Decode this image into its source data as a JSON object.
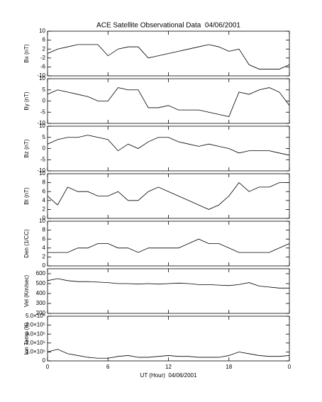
{
  "chart_data": [
    {
      "type": "line",
      "title": "ACE Satellite Observational Data  04/06/2001",
      "ylabel": "Bx (nT)",
      "color": "#000000",
      "x": [
        0,
        1,
        2,
        3,
        4,
        5,
        6,
        7,
        8,
        9,
        10,
        11,
        12,
        13,
        14,
        15,
        16,
        17,
        18,
        19,
        20,
        21,
        22,
        23,
        24
      ],
      "values": [
        0,
        2,
        3,
        4,
        4,
        4,
        -1,
        2,
        3,
        3,
        -2,
        -1,
        0,
        1,
        2,
        3,
        4,
        3,
        1,
        2,
        -5,
        -7,
        -7,
        -7,
        -5
      ],
      "xlim": [
        0,
        24
      ],
      "xticks": [
        0,
        6,
        12,
        18,
        24
      ],
      "ylim": [
        -10,
        10
      ],
      "yticks": [
        -10,
        -6,
        -2,
        2,
        6,
        10
      ]
    },
    {
      "type": "line",
      "ylabel": "By (nT)",
      "color": "#000000",
      "x": [
        0,
        1,
        2,
        3,
        4,
        5,
        6,
        7,
        8,
        9,
        10,
        11,
        12,
        13,
        14,
        15,
        16,
        17,
        18,
        19,
        20,
        21,
        22,
        23,
        24
      ],
      "values": [
        3,
        5,
        4,
        3,
        2,
        0,
        0,
        6,
        5,
        5,
        -3,
        -3,
        -2,
        -4,
        -4,
        -4,
        -5,
        -6,
        -7,
        4,
        3,
        5,
        6,
        4,
        -2
      ],
      "xlim": [
        0,
        24
      ],
      "xticks": [
        0,
        6,
        12,
        18,
        24
      ],
      "ylim": [
        -10,
        10
      ],
      "yticks": [
        -10,
        -5,
        0,
        5,
        10
      ]
    },
    {
      "type": "line",
      "ylabel": "Bz (nT)",
      "color": "#000000",
      "x": [
        0,
        1,
        2,
        3,
        4,
        5,
        6,
        7,
        8,
        9,
        10,
        11,
        12,
        13,
        14,
        15,
        16,
        17,
        18,
        19,
        20,
        21,
        22,
        23,
        24
      ],
      "values": [
        2,
        4,
        5,
        5,
        6,
        5,
        4,
        -1,
        2,
        0,
        3,
        5,
        5,
        3,
        2,
        1,
        2,
        1,
        0,
        -2,
        -1,
        -1,
        -1,
        -2,
        -3
      ],
      "xlim": [
        0,
        24
      ],
      "xticks": [
        0,
        6,
        12,
        18,
        24
      ],
      "ylim": [
        -10,
        10
      ],
      "yticks": [
        -10,
        -5,
        0,
        5,
        10
      ]
    },
    {
      "type": "line",
      "ylabel": "Bt (nT)",
      "color": "#000000",
      "x": [
        0,
        1,
        2,
        3,
        4,
        5,
        6,
        7,
        8,
        9,
        10,
        11,
        12,
        13,
        14,
        15,
        16,
        17,
        18,
        19,
        20,
        21,
        22,
        23,
        24
      ],
      "values": [
        5,
        3,
        7,
        6,
        6,
        5,
        5,
        6,
        4,
        4,
        6,
        7,
        6,
        5,
        4,
        3,
        2,
        3,
        5,
        8,
        6,
        7,
        7,
        8,
        8
      ],
      "xlim": [
        0,
        24
      ],
      "xticks": [
        0,
        6,
        12,
        18,
        24
      ],
      "ylim": [
        0,
        10
      ],
      "yticks": [
        0,
        2,
        4,
        6,
        8,
        10
      ]
    },
    {
      "type": "line",
      "ylabel": "Den (1/CC)",
      "color": "#000000",
      "x": [
        0,
        1,
        2,
        3,
        4,
        5,
        6,
        7,
        8,
        9,
        10,
        11,
        12,
        13,
        14,
        15,
        16,
        17,
        18,
        19,
        20,
        21,
        22,
        23,
        24
      ],
      "values": [
        3,
        3,
        3,
        4,
        4,
        5,
        5,
        4,
        4,
        3,
        4,
        4,
        4,
        4,
        5,
        6,
        5,
        5,
        4,
        3,
        3,
        3,
        3,
        4,
        5
      ],
      "xlim": [
        0,
        24
      ],
      "xticks": [
        0,
        6,
        12,
        18,
        24
      ],
      "ylim": [
        0,
        10
      ],
      "yticks": [
        0,
        2,
        4,
        6,
        8,
        10
      ]
    },
    {
      "type": "line",
      "ylabel": "Vel (Km/sec)",
      "color": "#000000",
      "x": [
        0,
        1,
        2,
        3,
        4,
        5,
        6,
        7,
        8,
        9,
        10,
        11,
        12,
        13,
        14,
        15,
        16,
        17,
        18,
        19,
        20,
        21,
        22,
        23,
        24
      ],
      "values": [
        530,
        550,
        530,
        520,
        520,
        515,
        510,
        500,
        500,
        495,
        500,
        495,
        500,
        505,
        500,
        490,
        490,
        485,
        480,
        490,
        510,
        475,
        465,
        455,
        455
      ],
      "xlim": [
        0,
        24
      ],
      "xticks": [
        0,
        6,
        12,
        18,
        24
      ],
      "ylim": [
        200,
        650
      ],
      "yticks": [
        200,
        300,
        400,
        500,
        600
      ]
    },
    {
      "type": "line",
      "ylabel": "Ion Temp (K)",
      "xlabel": "UT (Hour)  04/06/2001",
      "color": "#000000",
      "x": [
        0,
        1,
        2,
        3,
        4,
        5,
        6,
        7,
        8,
        9,
        10,
        11,
        12,
        13,
        14,
        15,
        16,
        17,
        18,
        19,
        20,
        21,
        22,
        23,
        24
      ],
      "values": [
        100000,
        130000,
        80000,
        60000,
        40000,
        30000,
        30000,
        50000,
        60000,
        40000,
        40000,
        50000,
        60000,
        50000,
        50000,
        40000,
        40000,
        40000,
        60000,
        100000,
        80000,
        60000,
        50000,
        50000,
        60000
      ],
      "xlim": [
        0,
        24
      ],
      "xticks": [
        0,
        6,
        12,
        18,
        {
          "value": 24,
          "label": "0"
        }
      ],
      "ylim": [
        0,
        500000
      ],
      "yticks": [
        0,
        {
          "value": 100000,
          "label": "1.0×10⁵"
        },
        {
          "value": 200000,
          "label": "2.0×10⁵"
        },
        {
          "value": 300000,
          "label": "3.0×10⁵"
        },
        {
          "value": 400000,
          "label": "4.0×10⁵"
        },
        {
          "value": 500000,
          "label": "5.0×10⁵"
        }
      ]
    }
  ]
}
